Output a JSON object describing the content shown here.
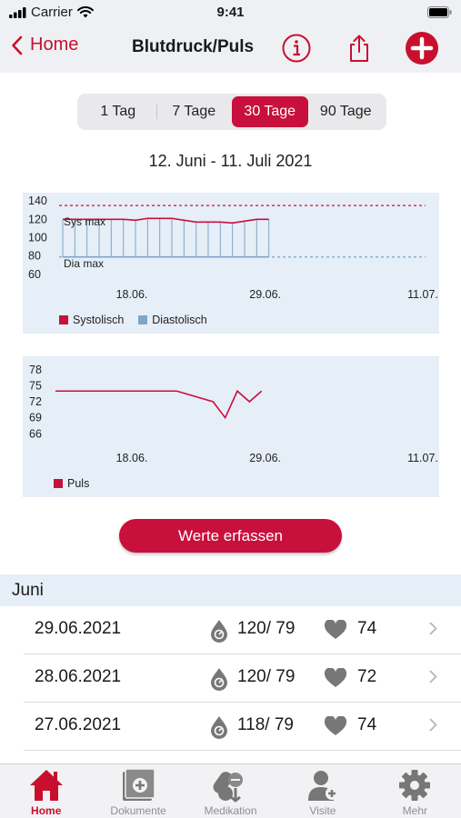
{
  "status": {
    "carrier": "Carrier",
    "time": "9:41"
  },
  "nav": {
    "back_label": "Home",
    "title": "Blutdruck/Puls"
  },
  "segments": [
    {
      "label": "1 Tag",
      "active": false
    },
    {
      "label": "7 Tage",
      "active": false
    },
    {
      "label": "30 Tage",
      "active": true
    },
    {
      "label": "90 Tage",
      "active": false
    }
  ],
  "date_range": "12. Juni - 11. Juli 2021",
  "colors": {
    "accent": "#c8103c",
    "systolic": "#c8103c",
    "diastolic": "#7ea6c9",
    "panel": "#e6eef7"
  },
  "chart_data": [
    {
      "type": "bar",
      "xlabel": "",
      "ylabel": "",
      "x_ticks": [
        "18.06.",
        "29.06.",
        "11.07."
      ],
      "y_ticks": [
        60,
        80,
        100,
        120,
        140
      ],
      "ylim": [
        55,
        145
      ],
      "x_domain": [
        "12.06.",
        "11.07."
      ],
      "thresholds": [
        {
          "label": "Sys max",
          "value": 135
        },
        {
          "label": "Dia max",
          "value": 79
        }
      ],
      "x": [
        "12.06.",
        "13.06.",
        "14.06.",
        "15.06.",
        "16.06.",
        "17.06.",
        "18.06.",
        "19.06.",
        "20.06.",
        "21.06.",
        "22.06.",
        "23.06.",
        "24.06.",
        "25.06.",
        "26.06.",
        "27.06.",
        "28.06.",
        "29.06."
      ],
      "series": [
        {
          "name": "Systolisch",
          "values": [
            120,
            120,
            120,
            120,
            120,
            120,
            119,
            121,
            121,
            121,
            119,
            117,
            117,
            117,
            116,
            118,
            120,
            120
          ]
        },
        {
          "name": "Diastolisch",
          "values": [
            79,
            79,
            79,
            79,
            79,
            79,
            79,
            79,
            79,
            79,
            79,
            79,
            79,
            79,
            79,
            79,
            79,
            79
          ]
        }
      ],
      "legend_position": "bottom-left"
    },
    {
      "type": "line",
      "xlabel": "",
      "ylabel": "",
      "x_ticks": [
        "18.06.",
        "29.06.",
        "11.07."
      ],
      "y_ticks": [
        66,
        69,
        72,
        75,
        78
      ],
      "ylim": [
        64,
        80
      ],
      "x_domain": [
        "12.06.",
        "11.07."
      ],
      "x": [
        "12.06.",
        "22.06.",
        "25.06.",
        "26.06.",
        "27.06.",
        "28.06.",
        "29.06."
      ],
      "series": [
        {
          "name": "Puls",
          "values": [
            74,
            74,
            72,
            69,
            74,
            72,
            74
          ]
        }
      ],
      "legend_position": "bottom-left"
    }
  ],
  "button": {
    "label": "Werte erfassen"
  },
  "section": {
    "title": "Juni"
  },
  "rows": [
    {
      "date": "29.06.2021",
      "bp": "120/ 79",
      "pulse": "74"
    },
    {
      "date": "28.06.2021",
      "bp": "120/ 79",
      "pulse": "72"
    },
    {
      "date": "27.06.2021",
      "bp": "118/ 79",
      "pulse": "74"
    }
  ],
  "tabs": [
    {
      "label": "Home",
      "icon": "home-icon",
      "active": true
    },
    {
      "label": "Dokumente",
      "icon": "documents-icon",
      "active": false
    },
    {
      "label": "Medikation",
      "icon": "medication-icon",
      "active": false
    },
    {
      "label": "Visite",
      "icon": "doctor-visit-icon",
      "active": false
    },
    {
      "label": "Mehr",
      "icon": "gear-icon",
      "active": false
    }
  ]
}
